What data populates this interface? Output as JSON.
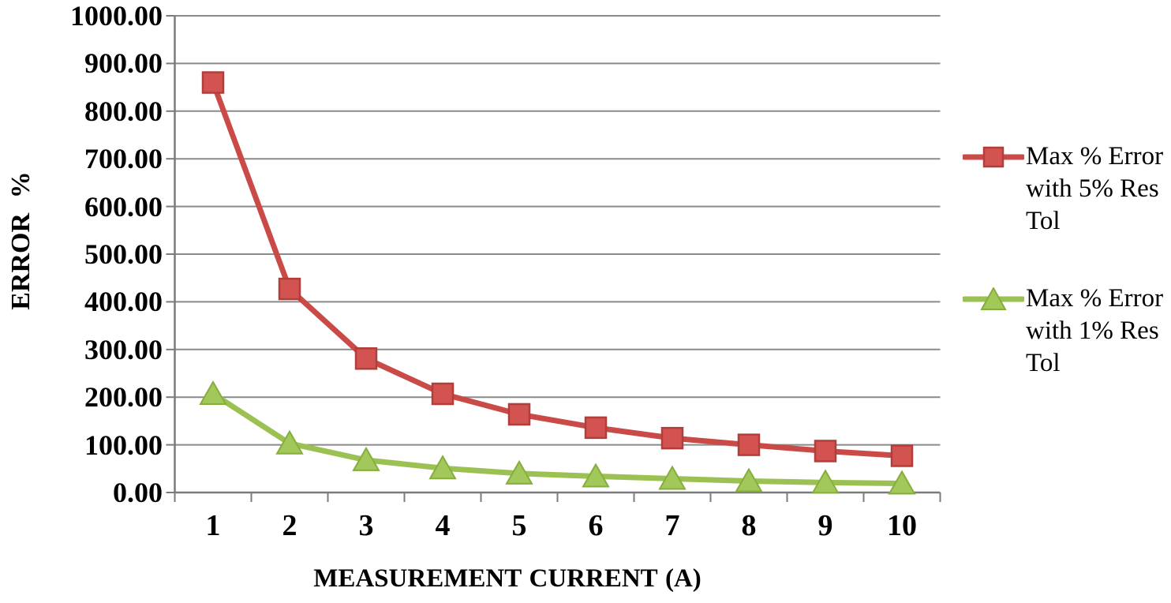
{
  "chart_data": {
    "type": "line",
    "title": "",
    "grid": "horizontal",
    "legend_position": "right",
    "colors": {
      "background": "#FFFFFF",
      "grid": "#8A8A8A",
      "axis": "#7B7B7B",
      "text": "#000000"
    },
    "y_axis": {
      "title": "ERROR %",
      "min": 0,
      "max": 1000,
      "step": 100,
      "tick_labels": [
        "1000.00",
        "900.00",
        "800.00",
        "700.00",
        "600.00",
        "500.00",
        "400.00",
        "300.00",
        "200.00",
        "100.00",
        "0.00"
      ]
    },
    "x_axis": {
      "title": "MEASUREMENT CURRENT (A)",
      "categories": [
        "1",
        "2",
        "3",
        "4",
        "5",
        "6",
        "7",
        "8",
        "9",
        "10"
      ]
    },
    "series": [
      {
        "name": "Max % Error with 5% Res Tol",
        "legend_lines": [
          "Max % Error",
          "with 5% Res",
          "Tol"
        ],
        "marker": "square",
        "color": {
          "line": "#C94A47",
          "fill": "#D25350",
          "edge": "#B23E3C"
        },
        "values": [
          860,
          427,
          281,
          207,
          164,
          136,
          114,
          100,
          87,
          77
        ]
      },
      {
        "name": "Max % Error with 1% Res Tol",
        "legend_lines": [
          "Max % Error",
          "with 1% Res",
          "Tol"
        ],
        "marker": "triangle",
        "color": {
          "line": "#9CC153",
          "fill": "#A2C75B",
          "edge": "#85AE3B"
        },
        "values": [
          207,
          103,
          68,
          51,
          40,
          34,
          29,
          24,
          21,
          19
        ]
      }
    ]
  }
}
